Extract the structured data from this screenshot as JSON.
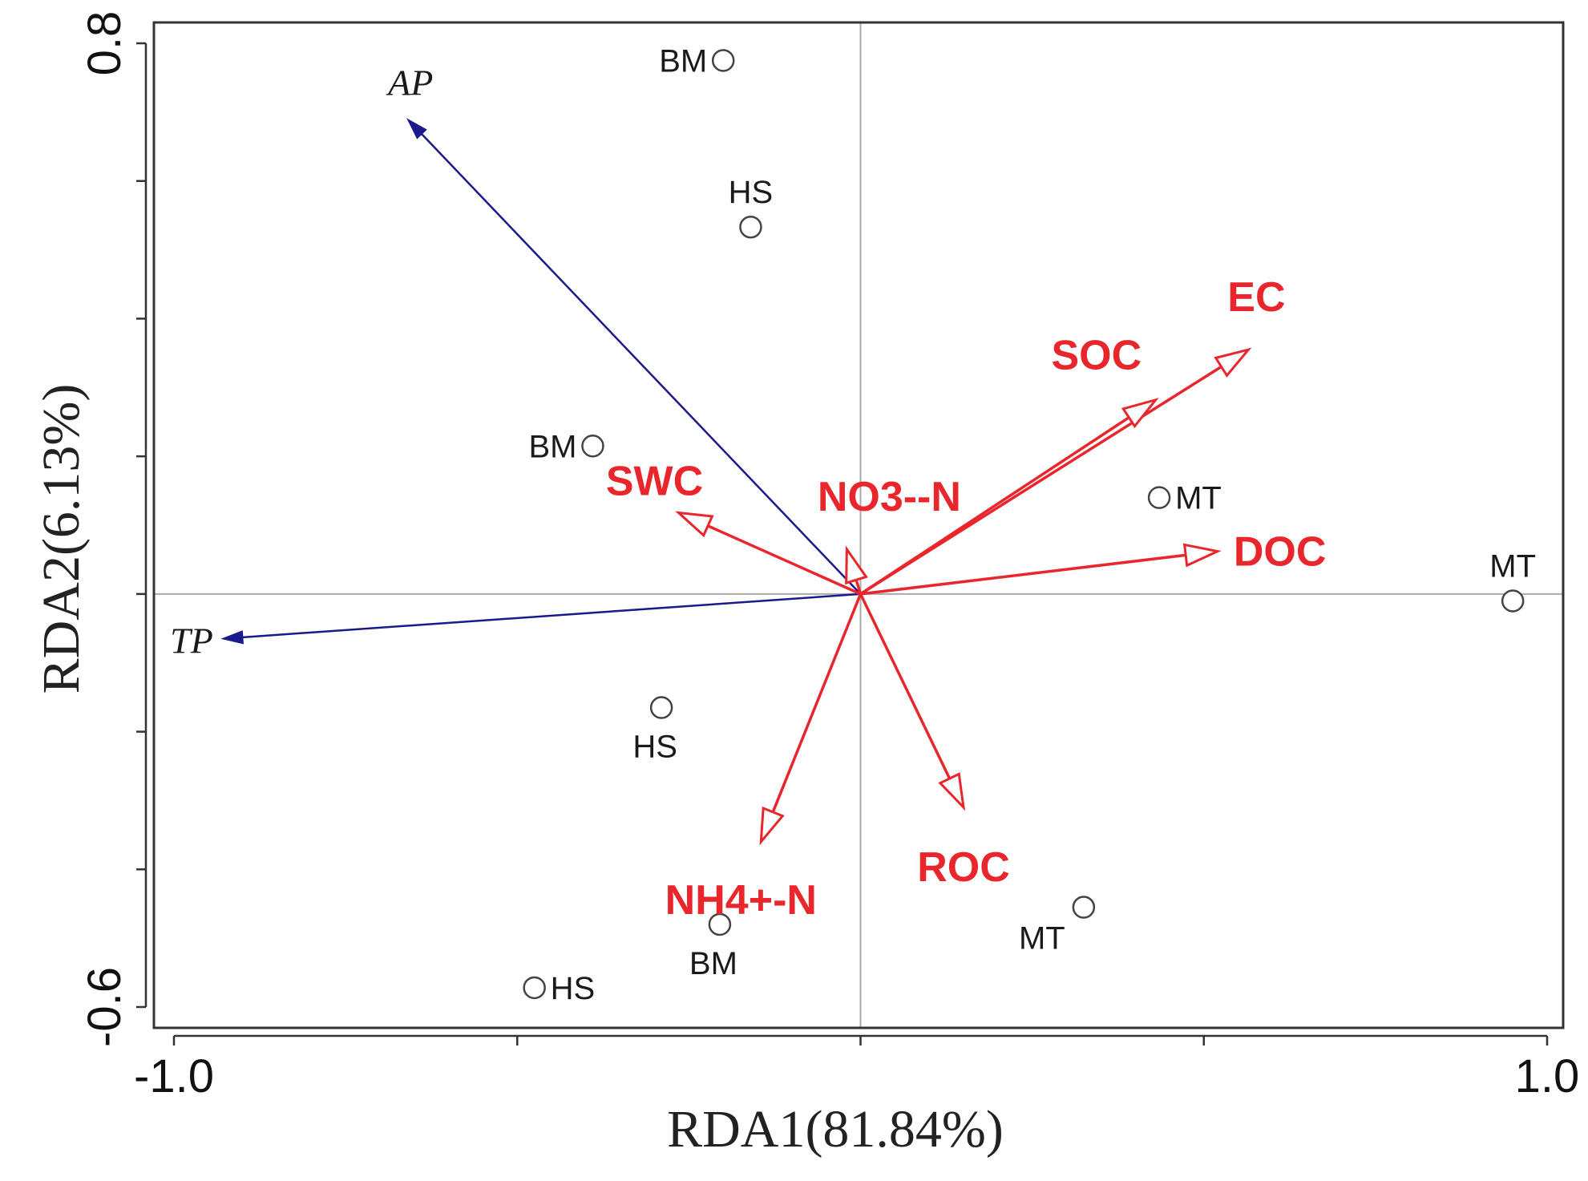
{
  "chart_data": {
    "type": "scatter",
    "subtype": "rda-biplot",
    "xlabel": "RDA1(81.84%)",
    "ylabel": "RDA2(6.13%)",
    "xlim": [
      -1.0,
      1.0
    ],
    "ylim": [
      -0.6,
      0.8
    ],
    "x_tick_labels": [
      {
        "value": -1.0,
        "label": "-1.0"
      },
      {
        "value": 1.0,
        "label": "1.0"
      }
    ],
    "y_tick_labels": [
      {
        "value": 0.8,
        "label": "0.8"
      },
      {
        "value": -0.6,
        "label": "-0.6"
      }
    ],
    "x_ticks": [
      -1.0,
      -0.5,
      0.0,
      0.5,
      1.0
    ],
    "y_ticks": [
      -0.6,
      -0.4,
      -0.2,
      0.0,
      0.2,
      0.4,
      0.6,
      0.8
    ],
    "colors": {
      "response": "#e8262c",
      "explanatory": "#1a1a8c",
      "sites": "#444444",
      "frame": "#333333",
      "zero_lines": "#aaaaaa"
    },
    "sites": [
      {
        "label": "BM",
        "x": -0.2,
        "y": 0.775,
        "label_pos": "left"
      },
      {
        "label": "HS",
        "x": -0.16,
        "y": 0.533,
        "label_pos": "above"
      },
      {
        "label": "BM",
        "x": -0.39,
        "y": 0.215,
        "label_pos": "left"
      },
      {
        "label": "MT",
        "x": 0.435,
        "y": 0.14,
        "label_pos": "right"
      },
      {
        "label": "MT",
        "x": 0.95,
        "y": -0.01,
        "label_pos": "above"
      },
      {
        "label": "HS",
        "x": -0.29,
        "y": -0.165,
        "label_pos": "below"
      },
      {
        "label": "MT",
        "x": 0.325,
        "y": -0.455,
        "label_pos": "below-left"
      },
      {
        "label": "BM",
        "x": -0.205,
        "y": -0.48,
        "label_pos": "below"
      },
      {
        "label": "HS",
        "x": -0.475,
        "y": -0.572,
        "label_pos": "right"
      }
    ],
    "response_vectors": [
      {
        "label": "EC",
        "x": 0.565,
        "y": 0.355
      },
      {
        "label": "SOC",
        "x": 0.43,
        "y": 0.282
      },
      {
        "label": "DOC",
        "x": 0.52,
        "y": 0.062
      },
      {
        "label": "SWC",
        "x": -0.265,
        "y": 0.118
      },
      {
        "label": "NO3--N",
        "x": -0.02,
        "y": 0.065
      },
      {
        "label": "ROC",
        "x": 0.15,
        "y": -0.31
      },
      {
        "label": "NH4+-N",
        "x": -0.145,
        "y": -0.36
      }
    ],
    "explanatory_vectors": [
      {
        "label": "AP",
        "x": -0.66,
        "y": 0.69
      },
      {
        "label": "TP",
        "x": -0.93,
        "y": -0.065
      }
    ]
  }
}
